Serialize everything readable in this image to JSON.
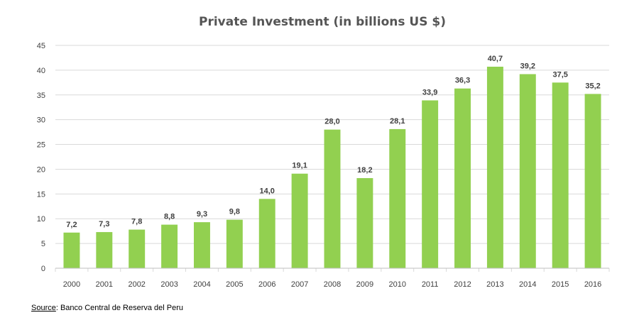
{
  "chart_data": {
    "type": "bar",
    "title": "Private Investment (in billions US $)",
    "categories": [
      "2000",
      "2001",
      "2002",
      "2003",
      "2004",
      "2005",
      "2006",
      "2007",
      "2008",
      "2009",
      "2010",
      "2011",
      "2012",
      "2013",
      "2014",
      "2015",
      "2016"
    ],
    "values": [
      7.2,
      7.3,
      7.8,
      8.8,
      9.3,
      9.8,
      14.0,
      19.1,
      28.0,
      18.2,
      28.1,
      33.9,
      36.3,
      40.7,
      39.2,
      37.5,
      35.2
    ],
    "data_labels": [
      "7,2",
      "7,3",
      "7,8",
      "8,8",
      "9,3",
      "9,8",
      "14,0",
      "19,1",
      "28,0",
      "18,2",
      "28,1",
      "33,9",
      "36,3",
      "40,7",
      "39,2",
      "37,5",
      "35,2"
    ],
    "ylim": [
      0,
      45
    ],
    "yticks": [
      0,
      5,
      10,
      15,
      20,
      25,
      30,
      35,
      40,
      45
    ],
    "xlabel": "",
    "ylabel": "",
    "grid": true,
    "bar_color": "#92d050"
  },
  "source": {
    "label": "Source",
    "text": ": Banco Central de Reserva del Peru"
  }
}
